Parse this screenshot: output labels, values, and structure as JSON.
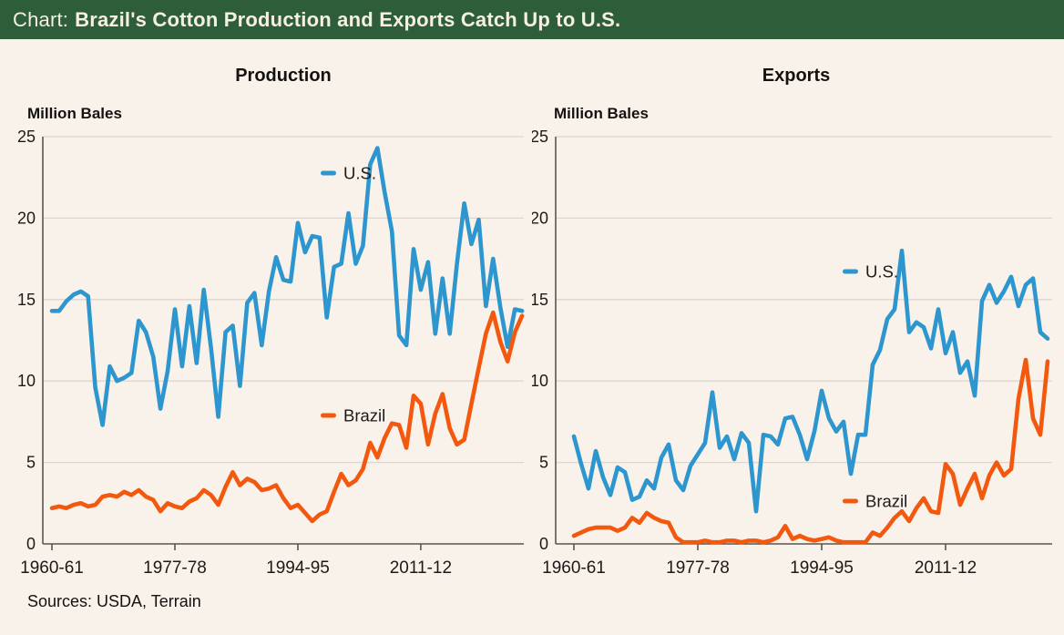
{
  "header": {
    "prefix_label": "Chart:",
    "title": "Brazil's Cotton Production and Exports Catch Up to U.S."
  },
  "source_note": "Sources: USDA, Terrain",
  "colors": {
    "header_bg": "#2e5d3a",
    "header_text": "#f6efe4",
    "background": "#f9f2ea",
    "us_line": "#2e96cf",
    "brazil_line": "#f2590f",
    "grid": "#ddd6ce",
    "axis": "#5a554f",
    "text": "#1c1a18"
  },
  "y_axis": {
    "unit_label": "Million Bales",
    "ticks": [
      0,
      5,
      10,
      15,
      20,
      25
    ]
  },
  "x_axis": {
    "tick_labels": [
      "1960-61",
      "1977-78",
      "1994-95",
      "2011-12"
    ],
    "tick_indices": [
      0,
      17,
      34,
      51
    ]
  },
  "legend": {
    "us_label": "U.S.",
    "brazil_label": "Brazil"
  },
  "chart_data": [
    {
      "type": "line",
      "title": "Production",
      "ylabel": "Million Bales",
      "ylim": [
        0,
        25
      ],
      "grid": true,
      "legend_position": "inside",
      "x_unit": "marketing year (one point per season)",
      "x_range_seasons": [
        "1960-61",
        "2025-26"
      ],
      "x_tick_labels": [
        "1960-61",
        "1977-78",
        "1994-95",
        "2011-12"
      ],
      "x_tick_indices": [
        0,
        17,
        34,
        51
      ],
      "n_points": 66,
      "series": [
        {
          "name": "U.S.",
          "color_key": "us_line",
          "values": [
            14.3,
            14.3,
            14.9,
            15.3,
            15.5,
            15.2,
            9.6,
            7.3,
            10.9,
            10.0,
            10.2,
            10.5,
            13.7,
            13.0,
            11.5,
            8.3,
            10.6,
            14.4,
            10.9,
            14.6,
            11.1,
            15.6,
            12.0,
            7.8,
            13.0,
            13.4,
            9.7,
            14.8,
            15.4,
            12.2,
            15.5,
            17.6,
            16.2,
            16.1,
            19.7,
            17.9,
            18.9,
            18.8,
            13.9,
            17.0,
            17.2,
            20.3,
            17.2,
            18.3,
            23.3,
            24.3,
            21.6,
            19.2,
            12.8,
            12.2,
            18.1,
            15.6,
            17.3,
            12.9,
            16.3,
            12.9,
            17.2,
            20.9,
            18.4,
            19.9,
            14.6,
            17.5,
            14.5,
            12.1,
            14.4,
            14.3
          ]
        },
        {
          "name": "Brazil",
          "color_key": "brazil_line",
          "values": [
            2.2,
            2.3,
            2.2,
            2.4,
            2.5,
            2.3,
            2.4,
            2.9,
            3.0,
            2.9,
            3.2,
            3.0,
            3.3,
            2.9,
            2.7,
            2.0,
            2.5,
            2.3,
            2.2,
            2.6,
            2.8,
            3.3,
            3.0,
            2.4,
            3.5,
            4.4,
            3.6,
            4.0,
            3.8,
            3.3,
            3.4,
            3.6,
            2.8,
            2.2,
            2.4,
            1.9,
            1.4,
            1.8,
            2.0,
            3.2,
            4.3,
            3.6,
            3.9,
            4.6,
            6.2,
            5.3,
            6.5,
            7.4,
            7.3,
            5.9,
            9.1,
            8.6,
            6.1,
            8.0,
            9.2,
            7.1,
            6.1,
            6.4,
            8.6,
            10.8,
            12.9,
            14.2,
            12.4,
            11.2,
            13.0,
            14.0
          ]
        }
      ]
    },
    {
      "type": "line",
      "title": "Exports",
      "ylabel": "Million Bales",
      "ylim": [
        0,
        25
      ],
      "grid": true,
      "legend_position": "inside",
      "x_unit": "marketing year (one point per season)",
      "x_range_seasons": [
        "1960-61",
        "2025-26"
      ],
      "x_tick_labels": [
        "1960-61",
        "1977-78",
        "1994-95",
        "2011-12"
      ],
      "x_tick_indices": [
        0,
        17,
        34,
        51
      ],
      "n_points": 66,
      "series": [
        {
          "name": "U.S.",
          "color_key": "us_line",
          "values": [
            6.6,
            4.9,
            3.4,
            5.7,
            4.1,
            3.0,
            4.7,
            4.4,
            2.7,
            2.9,
            3.9,
            3.4,
            5.3,
            6.1,
            3.9,
            3.3,
            4.8,
            5.5,
            6.2,
            9.3,
            5.9,
            6.6,
            5.2,
            6.8,
            6.2,
            2.0,
            6.7,
            6.6,
            6.1,
            7.7,
            7.8,
            6.7,
            5.2,
            6.9,
            9.4,
            7.7,
            6.9,
            7.5,
            4.3,
            6.7,
            6.7,
            11.0,
            11.9,
            13.8,
            14.4,
            18.0,
            13.0,
            13.6,
            13.3,
            12.0,
            14.4,
            11.7,
            13.0,
            10.5,
            11.2,
            9.1,
            14.9,
            15.9,
            14.8,
            15.5,
            16.4,
            14.6,
            15.9,
            16.3,
            13.0,
            12.6
          ]
        },
        {
          "name": "Brazil",
          "color_key": "brazil_line",
          "values": [
            0.5,
            0.7,
            0.9,
            1.0,
            1.0,
            1.0,
            0.8,
            1.0,
            1.6,
            1.3,
            1.9,
            1.6,
            1.4,
            1.3,
            0.4,
            0.1,
            0.1,
            0.1,
            0.2,
            0.1,
            0.1,
            0.2,
            0.2,
            0.1,
            0.2,
            0.2,
            0.1,
            0.2,
            0.4,
            1.1,
            0.3,
            0.5,
            0.3,
            0.2,
            0.3,
            0.4,
            0.2,
            0.1,
            0.1,
            0.1,
            0.1,
            0.7,
            0.5,
            1.0,
            1.6,
            2.0,
            1.4,
            2.2,
            2.8,
            2.0,
            1.9,
            4.9,
            4.3,
            2.4,
            3.4,
            4.3,
            2.8,
            4.2,
            5.0,
            4.2,
            4.6,
            8.9,
            11.3,
            7.7,
            6.7,
            11.2
          ]
        }
      ]
    }
  ]
}
